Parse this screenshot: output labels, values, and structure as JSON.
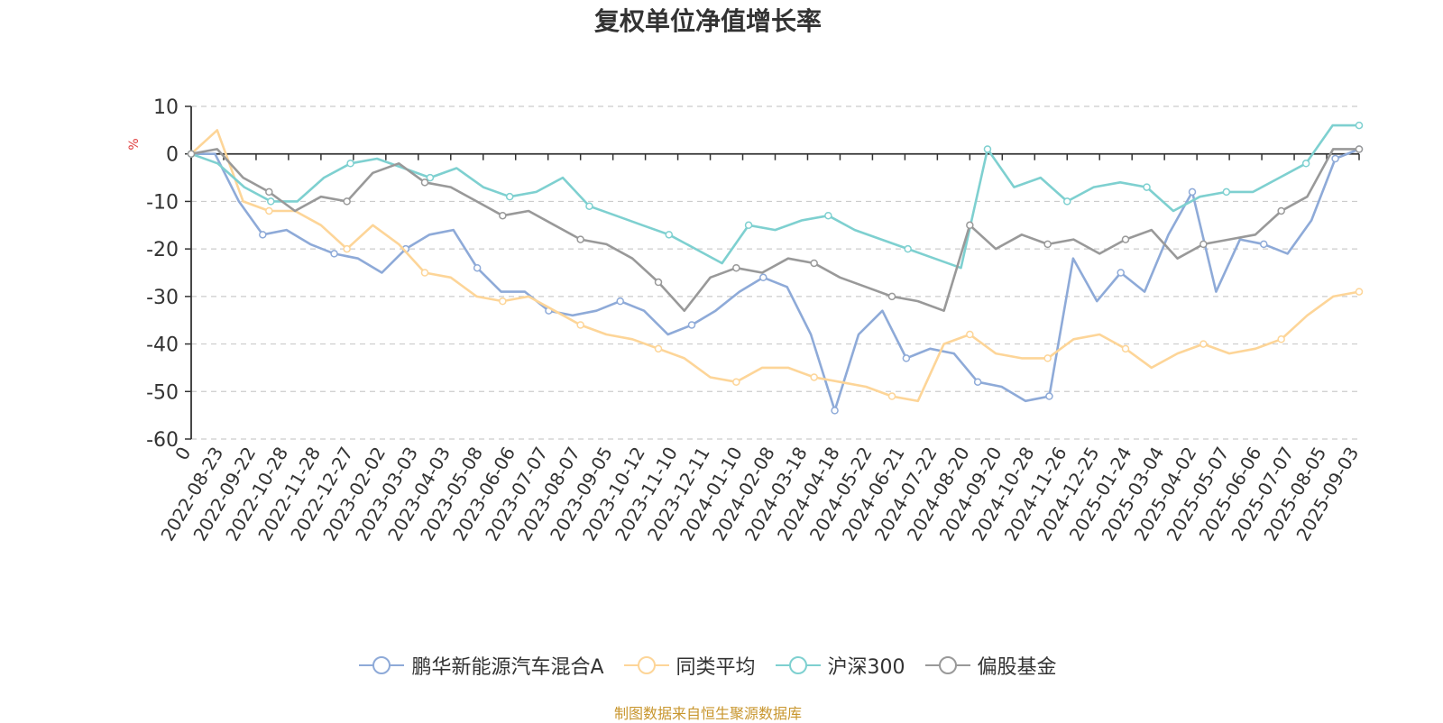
{
  "chart_data": {
    "type": "line",
    "title": "复权单位净值增长率",
    "ylabel": "%",
    "ylim": [
      -60,
      10
    ],
    "yticks": [
      10,
      0,
      -10,
      -20,
      -30,
      -40,
      -50,
      -60
    ],
    "x_tick_labels": [
      "0",
      "2022-08-23",
      "2022-09-22",
      "2022-10-28",
      "2022-11-28",
      "2022-12-27",
      "2023-02-02",
      "2023-03-03",
      "2023-04-03",
      "2023-05-08",
      "2023-06-06",
      "2023-07-07",
      "2023-08-07",
      "2023-09-05",
      "2023-10-12",
      "2023-11-10",
      "2023-12-11",
      "2024-01-10",
      "2024-02-08",
      "2024-03-18",
      "2024-04-18",
      "2024-05-22",
      "2024-06-21",
      "2024-07-22",
      "2024-08-20",
      "2024-09-20",
      "2024-10-28",
      "2024-11-26",
      "2024-12-25",
      "2025-01-24",
      "2025-03-04",
      "2025-04-02",
      "2025-05-07",
      "2025-06-06",
      "2025-07-07",
      "2025-08-05",
      "2025-09-03"
    ],
    "grid": "horizontal-dashed",
    "legend_position": "bottom",
    "series": [
      {
        "name": "鹏华新能源汽车混合A",
        "color": "#8eaad8",
        "values": [
          0,
          0,
          -10,
          -17,
          -16,
          -19,
          -21,
          -22,
          -25,
          -20,
          -17,
          -16,
          -24,
          -29,
          -29,
          -33,
          -34,
          -33,
          -31,
          -33,
          -38,
          -36,
          -33,
          -29,
          -26,
          -28,
          -38,
          -54,
          -38,
          -33,
          -43,
          -41,
          -42,
          -48,
          -49,
          -52,
          -51,
          -22,
          -31,
          -25,
          -29,
          -17,
          -8,
          -29,
          -18,
          -19,
          -21,
          -14,
          -1,
          1
        ]
      },
      {
        "name": "同类平均",
        "color": "#fdd598",
        "values": [
          0,
          5,
          -10,
          -12,
          -12,
          -15,
          -20,
          -15,
          -19,
          -25,
          -26,
          -30,
          -31,
          -30,
          -33,
          -36,
          -38,
          -39,
          -41,
          -43,
          -47,
          -48,
          -45,
          -45,
          -47,
          -48,
          -49,
          -51,
          -52,
          -40,
          -38,
          -42,
          -43,
          -43,
          -39,
          -38,
          -41,
          -45,
          -42,
          -40,
          -42,
          -41,
          -39,
          -34,
          -30,
          -29
        ]
      },
      {
        "name": "沪深300",
        "color": "#7ed0d0",
        "values": [
          0,
          -2,
          -7,
          -10,
          -10,
          -5,
          -2,
          -1,
          -3,
          -5,
          -3,
          -7,
          -9,
          -8,
          -5,
          -11,
          -13,
          -15,
          -17,
          -20,
          -23,
          -15,
          -16,
          -14,
          -13,
          -16,
          -18,
          -20,
          -22,
          -24,
          1,
          -7,
          -5,
          -10,
          -7,
          -6,
          -7,
          -12,
          -9,
          -8,
          -8,
          -5,
          -2,
          6,
          6
        ]
      },
      {
        "name": "偏股基金",
        "color": "#999999",
        "values": [
          0,
          1,
          -5,
          -8,
          -12,
          -9,
          -10,
          -4,
          -2,
          -6,
          -7,
          -10,
          -13,
          -12,
          -15,
          -18,
          -19,
          -22,
          -27,
          -33,
          -26,
          -24,
          -25,
          -22,
          -23,
          -26,
          -28,
          -30,
          -31,
          -33,
          -15,
          -20,
          -17,
          -19,
          -18,
          -21,
          -18,
          -16,
          -22,
          -19,
          -18,
          -17,
          -12,
          -9,
          1,
          1
        ]
      }
    ]
  },
  "legend": {
    "items": [
      "鹏华新能源汽车混合A",
      "同类平均",
      "沪深300",
      "偏股基金"
    ]
  },
  "source_text": "制图数据来自恒生聚源数据库",
  "colors": {
    "source_text": "#c8962e",
    "ylabel": "#e03b3b",
    "axis": "#333333",
    "grid": "#cccccc"
  }
}
